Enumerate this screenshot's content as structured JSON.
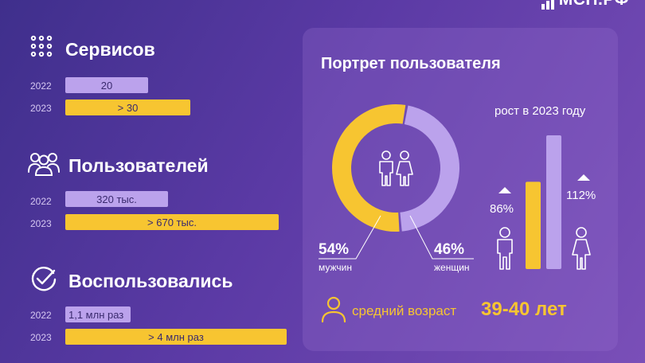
{
  "logo": {
    "text": "МСП.РФ"
  },
  "sections": [
    {
      "icon": "dots-grid-icon",
      "title": "Сервисов",
      "rows": [
        {
          "year": "2022",
          "label": "20",
          "value": 20
        },
        {
          "year": "2023",
          "label": "> 30",
          "value": 30
        }
      ]
    },
    {
      "icon": "users-group-icon",
      "title": "Пользователей",
      "rows": [
        {
          "year": "2022",
          "label": "320 тыс.",
          "value": 320
        },
        {
          "year": "2023",
          "label": "> 670 тыс.",
          "value": 670
        }
      ]
    },
    {
      "icon": "check-circle-icon",
      "title": "Воспользовались",
      "rows": [
        {
          "year": "2022",
          "label": "1,1 млн раз",
          "value": 1.1
        },
        {
          "year": "2023",
          "label": "> 4 млн раз",
          "value": 4
        }
      ]
    }
  ],
  "portrait": {
    "title": "Портрет пользователя",
    "men": {
      "percent": "54%",
      "label": "мужчин",
      "value": 54
    },
    "women": {
      "percent": "46%",
      "label": "женщин",
      "value": 46
    },
    "growth_title": "рост в 2023 году",
    "growth_men": {
      "label": "86%",
      "value": 86
    },
    "growth_women": {
      "label": "112%",
      "value": 112
    },
    "age_label": "средний возраст",
    "age_value": "39-40 лет"
  },
  "colors": {
    "year_2022": "#bba2ec",
    "year_2023": "#f7c531",
    "men": "#f7c531",
    "women": "#bba2ec"
  },
  "chart_data": [
    {
      "type": "bar",
      "title": "Сервисов",
      "categories": [
        "2022",
        "2023"
      ],
      "values": [
        20,
        30
      ],
      "value_labels": [
        "20",
        "> 30"
      ]
    },
    {
      "type": "bar",
      "title": "Пользователей",
      "categories": [
        "2022",
        "2023"
      ],
      "values": [
        320,
        670
      ],
      "value_labels": [
        "320 тыс.",
        "> 670 тыс."
      ]
    },
    {
      "type": "bar",
      "title": "Воспользовались",
      "categories": [
        "2022",
        "2023"
      ],
      "values": [
        1.1,
        4
      ],
      "value_labels": [
        "1,1 млн раз",
        "> 4 млн раз"
      ]
    },
    {
      "type": "pie",
      "title": "Портрет пользователя",
      "categories": [
        "мужчин",
        "женщин"
      ],
      "values": [
        54,
        46
      ]
    },
    {
      "type": "bar",
      "title": "рост в 2023 году",
      "categories": [
        "мужчин",
        "женщин"
      ],
      "values": [
        86,
        112
      ],
      "value_labels": [
        "86%",
        "112%"
      ]
    }
  ]
}
